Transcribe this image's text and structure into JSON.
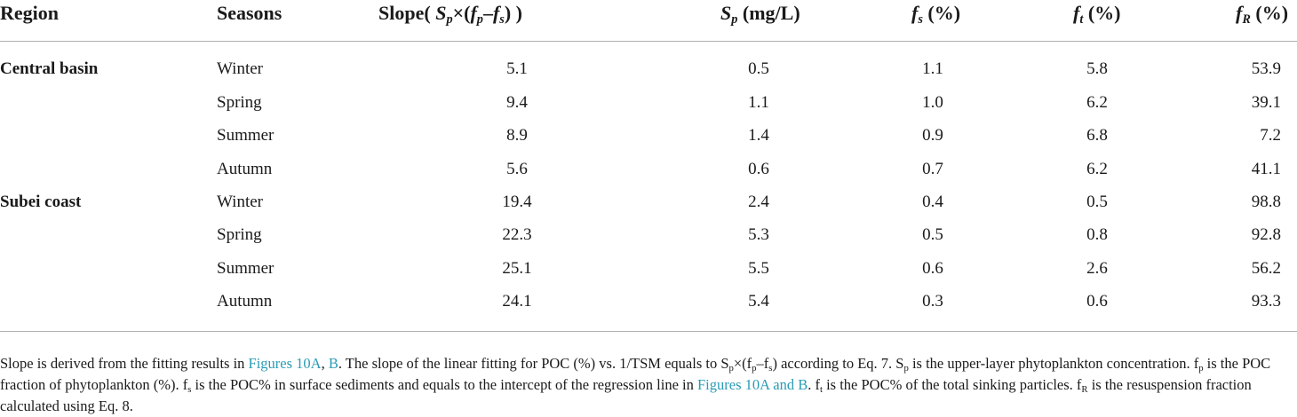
{
  "table": {
    "headers": {
      "region": "Region",
      "seasons": "Seasons",
      "slope": {
        "prefix": "Slope(",
        "sp": "S",
        "sp_sub": "p",
        "times": "×(",
        "fp": "f",
        "fp_sub": "p",
        "minus": "–",
        "fs": "f",
        "fs_sub": "s",
        "suffix": ") )"
      },
      "sp": {
        "sym": "S",
        "sub": "p",
        "unit": " (mg/L)"
      },
      "fs": {
        "sym": "f",
        "sub": "s",
        "unit": " (%)"
      },
      "ft": {
        "sym": "f",
        "sub": "t",
        "unit": " (%)"
      },
      "fr": {
        "sym": "f",
        "sub": "R",
        "unit": " (%)"
      }
    },
    "rows": [
      {
        "region": "Central basin",
        "season": "Winter",
        "slope": "5.1",
        "sp": "0.5",
        "fs": "1.1",
        "ft": "5.8",
        "fr": "53.9"
      },
      {
        "region": "",
        "season": "Spring",
        "slope": "9.4",
        "sp": "1.1",
        "fs": "1.0",
        "ft": "6.2",
        "fr": "39.1"
      },
      {
        "region": "",
        "season": "Summer",
        "slope": "8.9",
        "sp": "1.4",
        "fs": "0.9",
        "ft": "6.8",
        "fr": "7.2"
      },
      {
        "region": "",
        "season": "Autumn",
        "slope": "5.6",
        "sp": "0.6",
        "fs": "0.7",
        "ft": "6.2",
        "fr": "41.1"
      },
      {
        "region": "Subei coast",
        "season": "Winter",
        "slope": "19.4",
        "sp": "2.4",
        "fs": "0.4",
        "ft": "0.5",
        "fr": "98.8"
      },
      {
        "region": "",
        "season": "Spring",
        "slope": "22.3",
        "sp": "5.3",
        "fs": "0.5",
        "ft": "0.8",
        "fr": "92.8"
      },
      {
        "region": "",
        "season": "Summer",
        "slope": "25.1",
        "sp": "5.5",
        "fs": "0.6",
        "ft": "2.6",
        "fr": "56.2"
      },
      {
        "region": "",
        "season": "Autumn",
        "slope": "24.1",
        "sp": "5.4",
        "fs": "0.3",
        "ft": "0.6",
        "fr": "93.3"
      }
    ]
  },
  "footnote": {
    "t1": "Slope is derived from the fitting results in ",
    "link1": "Figures 10A",
    "t2": ", ",
    "link2": "B",
    "t3": ". The slope of the linear fitting for POC (%) vs. 1/TSM equals to S",
    "sub_p1": "p",
    "t4": "×(f",
    "sub_p2": "p",
    "t5": "–f",
    "sub_s1": "s",
    "t6": ") according to Eq. 7. S",
    "sub_p3": "p",
    "t7": " is the upper-layer phytoplankton concentration. f",
    "sub_p4": "p",
    "t8": " is the POC fraction of phytoplankton (%). f",
    "sub_s2": "s",
    "t9": " is the POC% in surface sediments and equals to the intercept of the regression line in ",
    "link3": "Figures 10A and B",
    "t10": ". f",
    "sub_t": "t",
    "t11": " is the POC% of the total sinking particles. f",
    "sub_r": "R",
    "t12": " is the resuspension fraction calculated using Eq. 8.",
    "link_color": "#2a9bb5"
  }
}
